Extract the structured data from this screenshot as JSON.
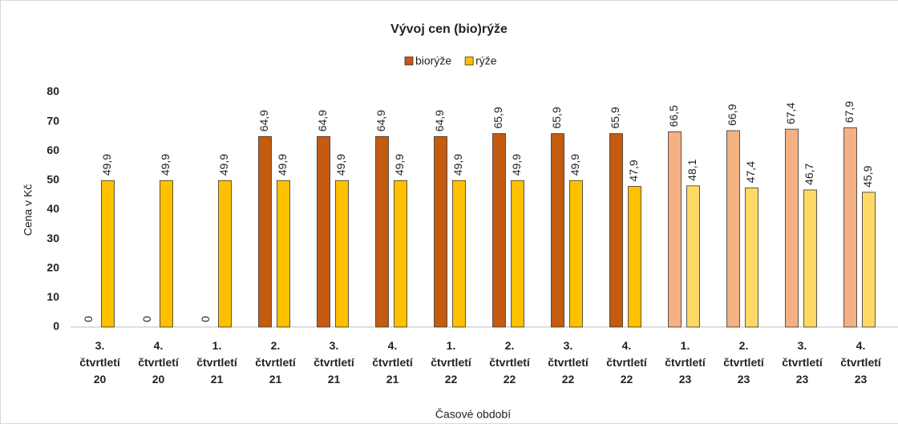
{
  "chart_data": {
    "type": "bar",
    "title": "Vývoj cen (bio)rýže",
    "x_label": "Časové období",
    "y_label": "Cena v Kč",
    "categories": [
      "3. čtvrtletí 20",
      "4. čtvrtletí 20",
      "1. čtvrtletí 21",
      "2. čtvrtletí 21",
      "3. čtvrtletí 21",
      "4. čtvrtletí 21",
      "1. čtvrtletí 22",
      "2. čtvrtletí 22",
      "3. čtvrtletí 22",
      "4. čtvrtletí 22",
      "1. čtvrtletí 23",
      "2. čtvrtletí 23",
      "3. čtvrtletí 23",
      "4. čtvrtletí 23"
    ],
    "series": [
      {
        "name": "biorýže",
        "color": "#c55a11",
        "point_colors": [
          "#c55a11",
          "#c55a11",
          "#c55a11",
          "#c55a11",
          "#c55a11",
          "#c55a11",
          "#c55a11",
          "#c55a11",
          "#c55a11",
          "#c55a11",
          "#f4b183",
          "#f4b183",
          "#f4b183",
          "#f4b183"
        ],
        "values": [
          0,
          0,
          0,
          64.9,
          64.9,
          64.9,
          64.9,
          65.9,
          65.9,
          65.9,
          66.5,
          66.9,
          67.4,
          67.9
        ],
        "value_labels": [
          "0",
          "0",
          "0",
          "64,9",
          "64,9",
          "64,9",
          "64,9",
          "65,9",
          "65,9",
          "65,9",
          "66,5",
          "66,9",
          "67,4",
          "67,9"
        ]
      },
      {
        "name": "rýže",
        "color": "#ffc000",
        "point_colors": [
          "#ffc000",
          "#ffc000",
          "#ffc000",
          "#ffc000",
          "#ffc000",
          "#ffc000",
          "#ffc000",
          "#ffc000",
          "#ffc000",
          "#ffc000",
          "#ffd966",
          "#ffd966",
          "#ffd966",
          "#ffd966"
        ],
        "values": [
          49.9,
          49.9,
          49.9,
          49.9,
          49.9,
          49.9,
          49.9,
          49.9,
          49.9,
          47.9,
          48.1,
          47.4,
          46.7,
          45.9
        ],
        "value_labels": [
          "49,9",
          "49,9",
          "49,9",
          "49,9",
          "49,9",
          "49,9",
          "49,9",
          "49,9",
          "49,9",
          "47,9",
          "48,1",
          "47,4",
          "46,7",
          "45,9"
        ]
      }
    ],
    "ylim": [
      0,
      80
    ],
    "yticks": [
      0,
      10,
      20,
      30,
      40,
      50,
      60,
      70,
      80
    ],
    "grid": false,
    "legend": "top"
  }
}
